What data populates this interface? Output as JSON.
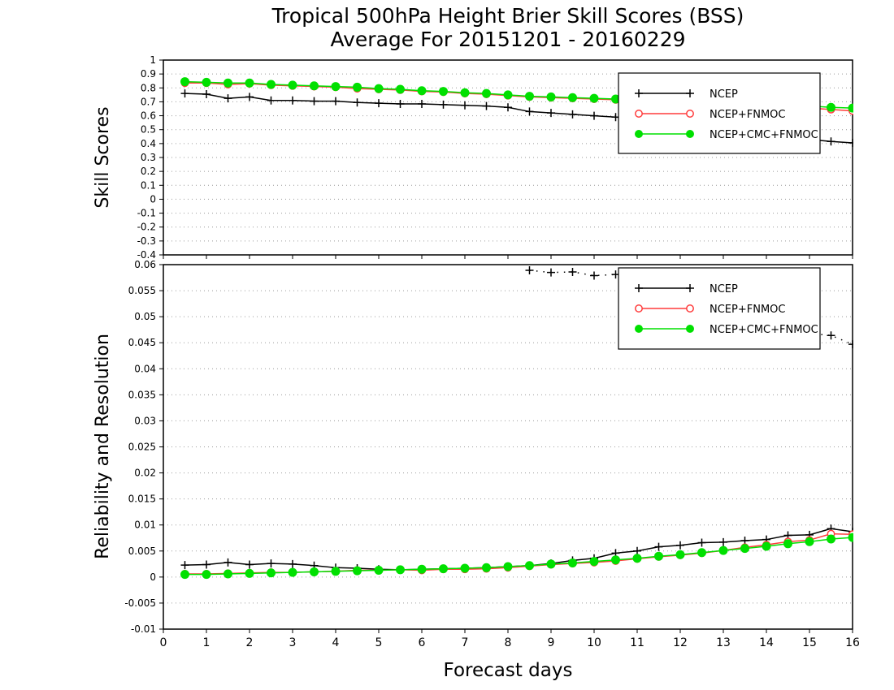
{
  "title": {
    "line1": "Tropical 500hPa Height Brier Skill Scores (BSS)",
    "line2": "Average For 20151201 - 20160229"
  },
  "xlabel": "Forecast days",
  "colors": {
    "NCEP": "#000000",
    "NCEP+FNMOC": "#ff3c3c",
    "NCEP+CMC+FNMOC": "#00e000"
  },
  "chart_data": [
    {
      "type": "line",
      "ylabel": "Skill Scores",
      "xlim": [
        0,
        16
      ],
      "ylim": [
        -0.4,
        1
      ],
      "x_ticks": [
        0,
        1,
        2,
        3,
        4,
        5,
        6,
        7,
        8,
        9,
        10,
        11,
        12,
        13,
        14,
        15,
        16
      ],
      "y_ticks": [
        -0.4,
        -0.3,
        -0.2,
        -0.1,
        0,
        0.1,
        0.2,
        0.3,
        0.4,
        0.5,
        0.6,
        0.7,
        0.8,
        0.9,
        1
      ],
      "y_tick_labels": [
        "-0.4",
        "-0.3",
        "-0.2",
        "-0.1",
        "0",
        "0.1",
        "0.2",
        "0.3",
        "0.4",
        "0.5",
        "0.6",
        "0.7",
        "0.8",
        "0.9",
        "1"
      ],
      "grid": "horizontal dotted",
      "legend": "top-right",
      "x": [
        0.5,
        1,
        1.5,
        2,
        2.5,
        3,
        3.5,
        4,
        4.5,
        5,
        5.5,
        6,
        6.5,
        7,
        7.5,
        8,
        8.5,
        9,
        9.5,
        10,
        10.5,
        11,
        11.5,
        12,
        12.5,
        13,
        13.5,
        14,
        14.5,
        15,
        15.5,
        16
      ],
      "series": [
        {
          "name": "NCEP",
          "marker": "plus",
          "values": [
            0.76,
            0.755,
            0.725,
            0.735,
            0.71,
            0.71,
            0.705,
            0.705,
            0.695,
            0.69,
            0.685,
            0.685,
            0.68,
            0.675,
            0.67,
            0.66,
            0.63,
            0.62,
            0.61,
            0.6,
            0.59,
            0.58,
            0.56,
            0.54,
            0.52,
            0.5,
            0.48,
            0.46,
            0.45,
            0.43,
            0.415,
            0.405
          ]
        },
        {
          "name": "NCEP+FNMOC",
          "marker": "open-circle",
          "values": [
            0.835,
            0.835,
            0.825,
            0.83,
            0.82,
            0.815,
            0.81,
            0.805,
            0.795,
            0.79,
            0.785,
            0.775,
            0.77,
            0.76,
            0.755,
            0.745,
            0.735,
            0.73,
            0.725,
            0.72,
            0.715,
            0.71,
            0.705,
            0.7,
            0.695,
            0.69,
            0.68,
            0.675,
            0.665,
            0.655,
            0.645,
            0.635
          ]
        },
        {
          "name": "NCEP+CMC+FNMOC",
          "marker": "filled-circle",
          "values": [
            0.845,
            0.84,
            0.835,
            0.835,
            0.825,
            0.82,
            0.815,
            0.81,
            0.805,
            0.795,
            0.79,
            0.78,
            0.775,
            0.765,
            0.76,
            0.75,
            0.74,
            0.735,
            0.73,
            0.725,
            0.72,
            0.72,
            0.715,
            0.71,
            0.705,
            0.7,
            0.695,
            0.69,
            0.68,
            0.67,
            0.66,
            0.655
          ]
        }
      ]
    },
    {
      "type": "line",
      "ylabel": "Reliability and Resolution",
      "xlim": [
        0,
        16
      ],
      "ylim": [
        -0.01,
        0.06
      ],
      "x_ticks": [
        0,
        1,
        2,
        3,
        4,
        5,
        6,
        7,
        8,
        9,
        10,
        11,
        12,
        13,
        14,
        15,
        16
      ],
      "y_ticks": [
        -0.01,
        -0.005,
        0,
        0.005,
        0.01,
        0.015,
        0.02,
        0.025,
        0.03,
        0.035,
        0.04,
        0.045,
        0.05,
        0.055,
        0.06
      ],
      "y_tick_labels": [
        "-0.01",
        "-0.005",
        "0",
        "0.005",
        "0.01",
        "0.015",
        "0.02",
        "0.025",
        "0.03",
        "0.035",
        "0.04",
        "0.045",
        "0.05",
        "0.055",
        "0.06"
      ],
      "grid": "horizontal dotted",
      "legend": "top-right",
      "x": [
        0.5,
        1,
        1.5,
        2,
        2.5,
        3,
        3.5,
        4,
        4.5,
        5,
        5.5,
        6,
        6.5,
        7,
        7.5,
        8,
        8.5,
        9,
        9.5,
        10,
        10.5,
        11,
        11.5,
        12,
        12.5,
        13,
        13.5,
        14,
        14.5,
        15,
        15.5,
        16
      ],
      "series": [
        {
          "name": "NCEP",
          "marker": "plus",
          "role": "reliability",
          "values": [
            0.0023,
            0.0024,
            0.0028,
            0.0024,
            0.0026,
            0.0025,
            0.0022,
            0.0018,
            0.0017,
            0.0015,
            0.0014,
            0.0015,
            0.0016,
            0.0017,
            0.0018,
            0.002,
            0.0022,
            0.0026,
            0.0032,
            0.0036,
            0.0046,
            0.005,
            0.0058,
            0.0061,
            0.0066,
            0.0067,
            0.007,
            0.0072,
            0.008,
            0.0081,
            0.0093,
            0.0087
          ]
        },
        {
          "name": "NCEP+FNMOC",
          "marker": "open-circle",
          "role": "reliability",
          "values": [
            0.0006,
            0.0006,
            0.0007,
            0.0008,
            0.0009,
            0.0009,
            0.001,
            0.0011,
            0.0013,
            0.0013,
            0.0014,
            0.0013,
            0.0015,
            0.0015,
            0.0016,
            0.0018,
            0.0021,
            0.0024,
            0.0026,
            0.0028,
            0.0031,
            0.0035,
            0.0039,
            0.0042,
            0.0046,
            0.0051,
            0.0057,
            0.0062,
            0.0068,
            0.0071,
            0.0083,
            0.0082
          ]
        },
        {
          "name": "NCEP+CMC+FNMOC",
          "marker": "filled-circle",
          "role": "reliability",
          "values": [
            0.0005,
            0.0005,
            0.0006,
            0.0007,
            0.0008,
            0.0009,
            0.001,
            0.0011,
            0.0012,
            0.0013,
            0.0014,
            0.0015,
            0.0016,
            0.0017,
            0.0018,
            0.002,
            0.0022,
            0.0025,
            0.0027,
            0.003,
            0.0033,
            0.0036,
            0.004,
            0.0043,
            0.0047,
            0.0051,
            0.0055,
            0.0059,
            0.0064,
            0.0068,
            0.0073,
            0.0076
          ]
        },
        {
          "name": "NCEP",
          "marker": "plus",
          "role": "resolution",
          "linestyle": "dotted",
          "x": [
            8.5,
            9,
            9.5,
            10,
            10.5,
            11,
            11.5,
            12,
            12.5,
            13,
            13.5,
            14,
            14.5,
            15,
            15.5,
            16
          ],
          "values": [
            0.0589,
            0.0585,
            0.0586,
            0.0579,
            0.0581,
            0.0565,
            0.0545,
            0.0525,
            0.0505,
            0.0485,
            0.0482,
            0.0478,
            0.047,
            0.0468,
            0.0464,
            0.0447
          ]
        }
      ]
    }
  ]
}
